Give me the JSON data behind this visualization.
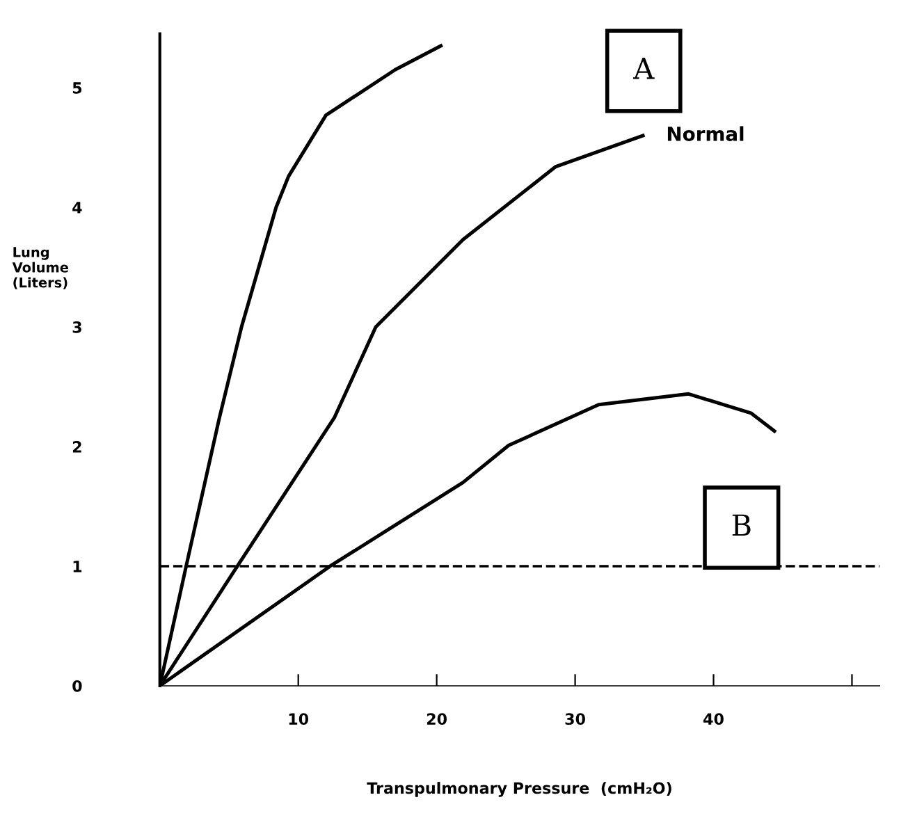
{
  "chart_data": {
    "type": "line",
    "xlabel": "Transpulmonary Pressure  (cmH₂O)",
    "ylabel": "Lung\nVolume\n(Liters)",
    "xlim": [
      0,
      52
    ],
    "xticks": [
      10,
      20,
      30,
      40,
      {
        "value": 50,
        "label": null
      }
    ],
    "ylim": [
      0,
      5.45
    ],
    "yticks": [
      0,
      1,
      2,
      3,
      4,
      5
    ],
    "series": [
      {
        "name": "A",
        "color": "#000000",
        "x": [
          0,
          1.9,
          4.3,
          5.9,
          8.4,
          9.3,
          12,
          17,
          20.3
        ],
        "values": [
          0,
          1,
          2.24,
          3,
          4,
          4.26,
          4.77,
          5.15,
          5.35
        ]
      },
      {
        "name": "Normal",
        "color": "#000000",
        "x": [
          0,
          5.6,
          12.6,
          15.6,
          21.9,
          28.6,
          34.9
        ],
        "values": [
          0,
          1,
          2.24,
          3,
          3.73,
          4.34,
          4.6
        ]
      },
      {
        "name": "B",
        "color": "#000000",
        "x": [
          0,
          12.3,
          21.9,
          25.2,
          31.7,
          38.2,
          42.7,
          44.4
        ],
        "values": [
          0,
          1,
          1.7,
          2.01,
          2.35,
          2.44,
          2.28,
          2.13
        ]
      }
    ],
    "ref_lines": [
      {
        "axis": "y",
        "value": 1,
        "color": "#000000",
        "line_style": "dashed"
      }
    ],
    "grid": false,
    "legend": false,
    "marker": "none",
    "line_style": "solid"
  }
}
